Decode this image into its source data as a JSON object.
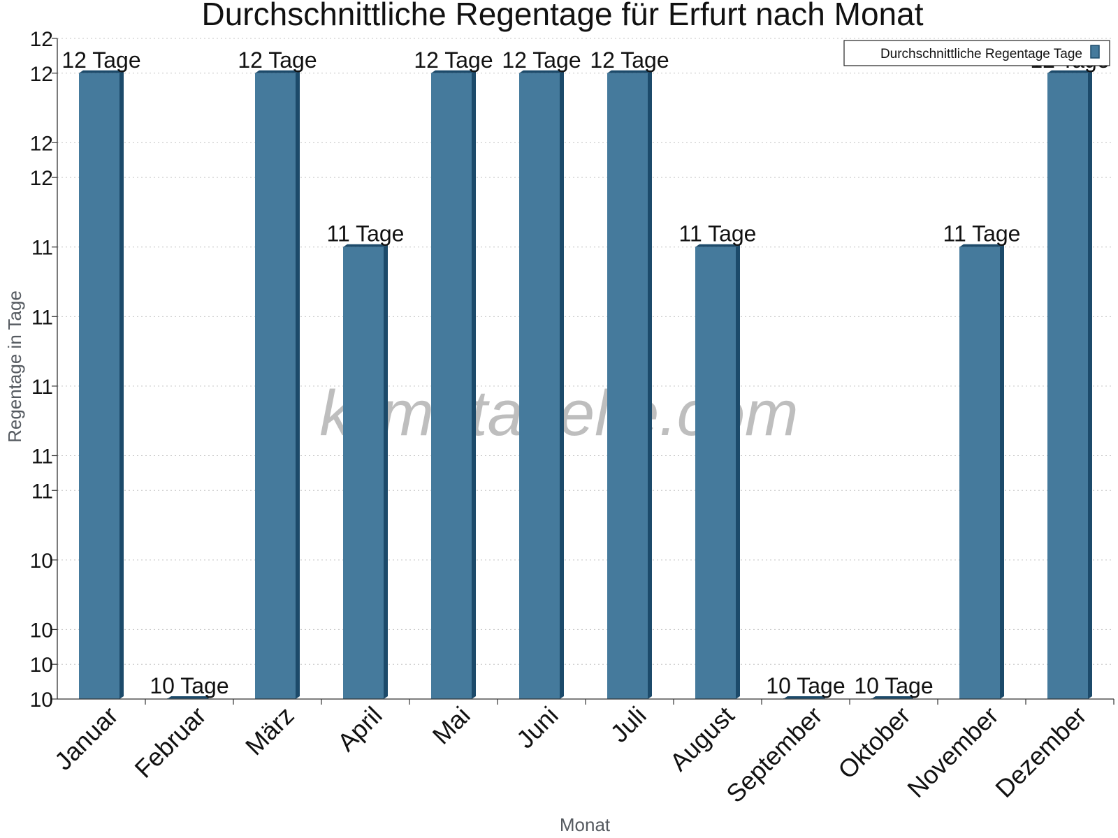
{
  "chart_data": {
    "type": "bar",
    "title": "Durchschnittliche Regentage für Erfurt nach Monat",
    "xlabel": "Monat",
    "ylabel": "Regentage in Tage",
    "categories": [
      "Januar",
      "Februar",
      "März",
      "April",
      "Mai",
      "Juni",
      "Juli",
      "August",
      "September",
      "Oktober",
      "November",
      "Dezember"
    ],
    "series": [
      {
        "name": "Durchschnittliche Regentage Tage",
        "values": [
          11.8,
          10.0,
          11.8,
          11.3,
          11.8,
          11.8,
          11.8,
          11.3,
          10.0,
          10.0,
          11.3,
          11.8
        ],
        "labels": [
          "12 Tage",
          "10 Tage",
          "12 Tage",
          "11 Tage",
          "12 Tage",
          "12 Tage",
          "12 Tage",
          "11 Tage",
          "10 Tage",
          "10 Tage",
          "11 Tage",
          "12 Tage"
        ]
      }
    ],
    "ylim": [
      10.0,
      11.9
    ],
    "yticks": [
      10.0,
      10.1,
      10.2,
      10.4,
      10.6,
      10.7,
      10.9,
      11.1,
      11.3,
      11.5,
      11.6,
      11.8,
      11.9
    ],
    "ytick_labels": [
      "10",
      "10",
      "10",
      "10",
      "11",
      "11",
      "11",
      "11",
      "11",
      "12",
      "12",
      "12",
      "12"
    ],
    "grid": true,
    "legend": "top-right",
    "bar_color": "#457a9c",
    "bar_side_color": "#1c4a6a",
    "watermark": "klimatabelle.com"
  }
}
